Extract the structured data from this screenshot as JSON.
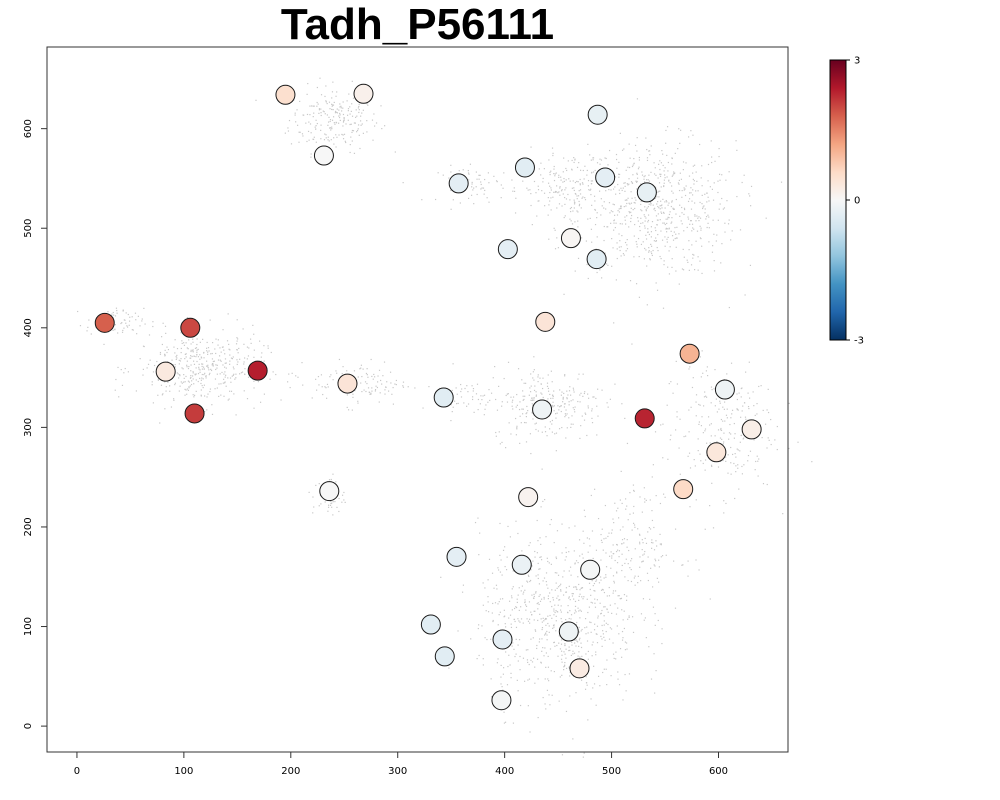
{
  "chart_data": {
    "type": "scatter",
    "title": "Tadh_P56111",
    "xlabel": "",
    "ylabel": "",
    "xlim": [
      -28,
      665
    ],
    "ylim": [
      -26,
      682
    ],
    "x_ticks": [
      0,
      100,
      200,
      300,
      400,
      500,
      600
    ],
    "y_ticks": [
      0,
      100,
      200,
      300,
      400,
      500,
      600
    ],
    "grid": false,
    "colorbar": {
      "min": -3,
      "max": 3,
      "ticks": [
        3,
        0,
        -3
      ],
      "colors": [
        "#053061",
        "#2166ac",
        "#4393c3",
        "#92c5de",
        "#d1e5f0",
        "#f7f7f7",
        "#fddbc7",
        "#f4a582",
        "#d6604d",
        "#b2182b",
        "#67001f"
      ]
    },
    "background_points_color": "#c8c8c8",
    "clusters": [
      {
        "cx": 240,
        "cy": 610,
        "sx": 28,
        "sy": 22,
        "n": 220
      },
      {
        "cx": 540,
        "cy": 520,
        "sx": 50,
        "sy": 45,
        "n": 650
      },
      {
        "cx": 460,
        "cy": 540,
        "sx": 30,
        "sy": 25,
        "n": 180
      },
      {
        "cx": 375,
        "cy": 545,
        "sx": 25,
        "sy": 12,
        "n": 60
      },
      {
        "cx": 115,
        "cy": 360,
        "sx": 40,
        "sy": 25,
        "n": 420
      },
      {
        "cx": 35,
        "cy": 405,
        "sx": 18,
        "sy": 10,
        "n": 70
      },
      {
        "cx": 265,
        "cy": 345,
        "sx": 30,
        "sy": 15,
        "n": 110
      },
      {
        "cx": 440,
        "cy": 325,
        "sx": 35,
        "sy": 25,
        "n": 260
      },
      {
        "cx": 365,
        "cy": 330,
        "sx": 20,
        "sy": 10,
        "n": 50
      },
      {
        "cx": 235,
        "cy": 232,
        "sx": 10,
        "sy": 14,
        "n": 55
      },
      {
        "cx": 600,
        "cy": 300,
        "sx": 35,
        "sy": 45,
        "n": 240
      },
      {
        "cx": 450,
        "cy": 110,
        "sx": 50,
        "sy": 60,
        "n": 700
      },
      {
        "cx": 520,
        "cy": 180,
        "sx": 30,
        "sy": 40,
        "n": 180
      }
    ],
    "points": [
      {
        "x": 195,
        "y": 634,
        "v": 0.5
      },
      {
        "x": 268,
        "y": 635,
        "v": 0.15
      },
      {
        "x": 231,
        "y": 573,
        "v": 0.0
      },
      {
        "x": 487,
        "y": 614,
        "v": -0.25
      },
      {
        "x": 357,
        "y": 545,
        "v": -0.3
      },
      {
        "x": 419,
        "y": 561,
        "v": -0.35
      },
      {
        "x": 494,
        "y": 551,
        "v": -0.3
      },
      {
        "x": 533,
        "y": 536,
        "v": -0.25
      },
      {
        "x": 462,
        "y": 490,
        "v": 0.05
      },
      {
        "x": 403,
        "y": 479,
        "v": -0.3
      },
      {
        "x": 486,
        "y": 469,
        "v": -0.35
      },
      {
        "x": 26,
        "y": 405,
        "v": 1.8
      },
      {
        "x": 106,
        "y": 400,
        "v": 2.0
      },
      {
        "x": 438,
        "y": 406,
        "v": 0.4
      },
      {
        "x": 573,
        "y": 374,
        "v": 1.05
      },
      {
        "x": 83,
        "y": 356,
        "v": 0.3
      },
      {
        "x": 169,
        "y": 357,
        "v": 2.35
      },
      {
        "x": 253,
        "y": 344,
        "v": 0.4
      },
      {
        "x": 606,
        "y": 338,
        "v": -0.15
      },
      {
        "x": 343,
        "y": 330,
        "v": -0.35
      },
      {
        "x": 435,
        "y": 318,
        "v": -0.15
      },
      {
        "x": 110,
        "y": 314,
        "v": 2.1
      },
      {
        "x": 531,
        "y": 309,
        "v": 2.3
      },
      {
        "x": 631,
        "y": 298,
        "v": 0.2
      },
      {
        "x": 598,
        "y": 275,
        "v": 0.35
      },
      {
        "x": 567,
        "y": 238,
        "v": 0.6
      },
      {
        "x": 236,
        "y": 236,
        "v": 0.0
      },
      {
        "x": 422,
        "y": 230,
        "v": 0.1
      },
      {
        "x": 355,
        "y": 170,
        "v": -0.3
      },
      {
        "x": 416,
        "y": 162,
        "v": -0.2
      },
      {
        "x": 480,
        "y": 157,
        "v": -0.05
      },
      {
        "x": 331,
        "y": 102,
        "v": -0.35
      },
      {
        "x": 460,
        "y": 95,
        "v": -0.15
      },
      {
        "x": 398,
        "y": 87,
        "v": -0.3
      },
      {
        "x": 344,
        "y": 70,
        "v": -0.35
      },
      {
        "x": 470,
        "y": 58,
        "v": 0.25
      },
      {
        "x": 397,
        "y": 26,
        "v": -0.05
      }
    ]
  }
}
